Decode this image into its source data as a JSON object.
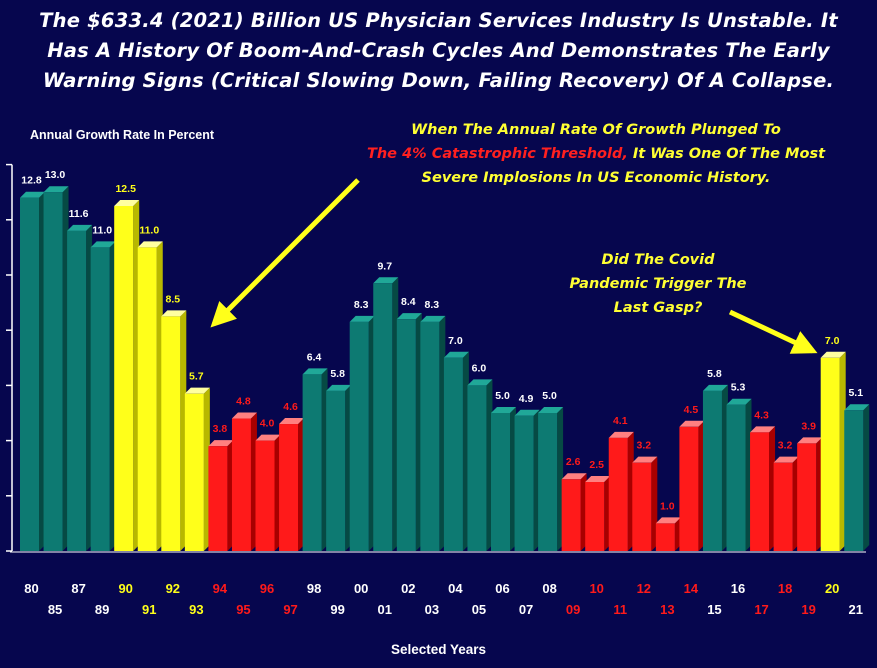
{
  "title": {
    "line1": "The $633.4 (2021) Billion US Physician Services Industry Is Unstable. It",
    "line2": "Has A History Of Boom-And-Crash Cycles And Demonstrates The Early",
    "line3": "Warning Signs (Critical Slowing Down, Failing Recovery) Of A Collapse."
  },
  "annotation_1": {
    "line1": "When The Annual Rate Of Growth Plunged To",
    "line2_red": "The 4% Catastrophic Threshold,",
    "line2_yellow": " It Was One Of The Most",
    "line3": "Severe Implosions In US Economic History."
  },
  "annotation_2": {
    "line1": "Did The Covid",
    "line2": "Pandemic Trigger The",
    "line3": "Last Gasp?"
  },
  "colors": {
    "background": "#06064e",
    "teal": "#0d7a72",
    "yellow": "#ffff1a",
    "red": "#ff1a1a",
    "white": "#ffffff"
  },
  "chart_data": {
    "type": "bar",
    "title": "",
    "ylabel": "Annual Growth Rate In Percent",
    "xlabel": "Selected Years",
    "ylim": [
      0,
      14
    ],
    "grid": false,
    "legend": "none",
    "categories": [
      "80",
      "85",
      "87",
      "89",
      "90",
      "91",
      "92",
      "93",
      "94",
      "95",
      "96",
      "97",
      "98",
      "99",
      "00",
      "01",
      "02",
      "03",
      "04",
      "05",
      "06",
      "07",
      "08",
      "09",
      "10",
      "11",
      "12",
      "13",
      "14",
      "15",
      "16",
      "17",
      "18",
      "19",
      "20",
      "21"
    ],
    "values": [
      12.8,
      13.0,
      11.6,
      11.0,
      12.5,
      11.0,
      8.5,
      5.7,
      3.8,
      4.8,
      4.0,
      4.6,
      6.4,
      5.8,
      8.3,
      9.7,
      8.4,
      8.3,
      7.0,
      6.0,
      5.0,
      4.9,
      5.0,
      2.6,
      2.5,
      4.1,
      3.2,
      1.0,
      4.5,
      5.8,
      5.3,
      4.3,
      3.2,
      3.9,
      7.0,
      5.1
    ],
    "data_labels": [
      "12.8",
      "13.0",
      "11.6",
      "11.0",
      "12.5",
      "11.0",
      "8.5",
      "5.7",
      "3.8",
      "4.8",
      "4.0",
      "4.6",
      "6.4",
      "5.8",
      "8.3",
      "9.7",
      "8.4",
      "8.3",
      "7.0",
      "6.0",
      "5.0",
      "4.9",
      "5.0",
      "2.6",
      "2.5",
      "4.1",
      "3.2",
      "1.0",
      "4.5",
      "5.8",
      "5.3",
      "4.3",
      "3.2",
      "3.9",
      "7.0",
      "5.1"
    ],
    "bar_colors": [
      "teal",
      "teal",
      "teal",
      "teal",
      "yellow",
      "yellow",
      "yellow",
      "yellow",
      "red",
      "red",
      "red",
      "red",
      "teal",
      "teal",
      "teal",
      "teal",
      "teal",
      "teal",
      "teal",
      "teal",
      "teal",
      "teal",
      "teal",
      "red",
      "red",
      "red",
      "red",
      "red",
      "red",
      "teal",
      "teal",
      "red",
      "red",
      "red",
      "yellow",
      "teal"
    ],
    "label_colors": [
      "white",
      "white",
      "white",
      "white",
      "yellow",
      "yellow",
      "yellow",
      "yellow",
      "red",
      "red",
      "red",
      "red",
      "white",
      "white",
      "white",
      "white",
      "white",
      "white",
      "white",
      "white",
      "white",
      "white",
      "white",
      "red",
      "red",
      "red",
      "red",
      "red",
      "red",
      "white",
      "white",
      "red",
      "red",
      "red",
      "yellow",
      "white"
    ]
  }
}
